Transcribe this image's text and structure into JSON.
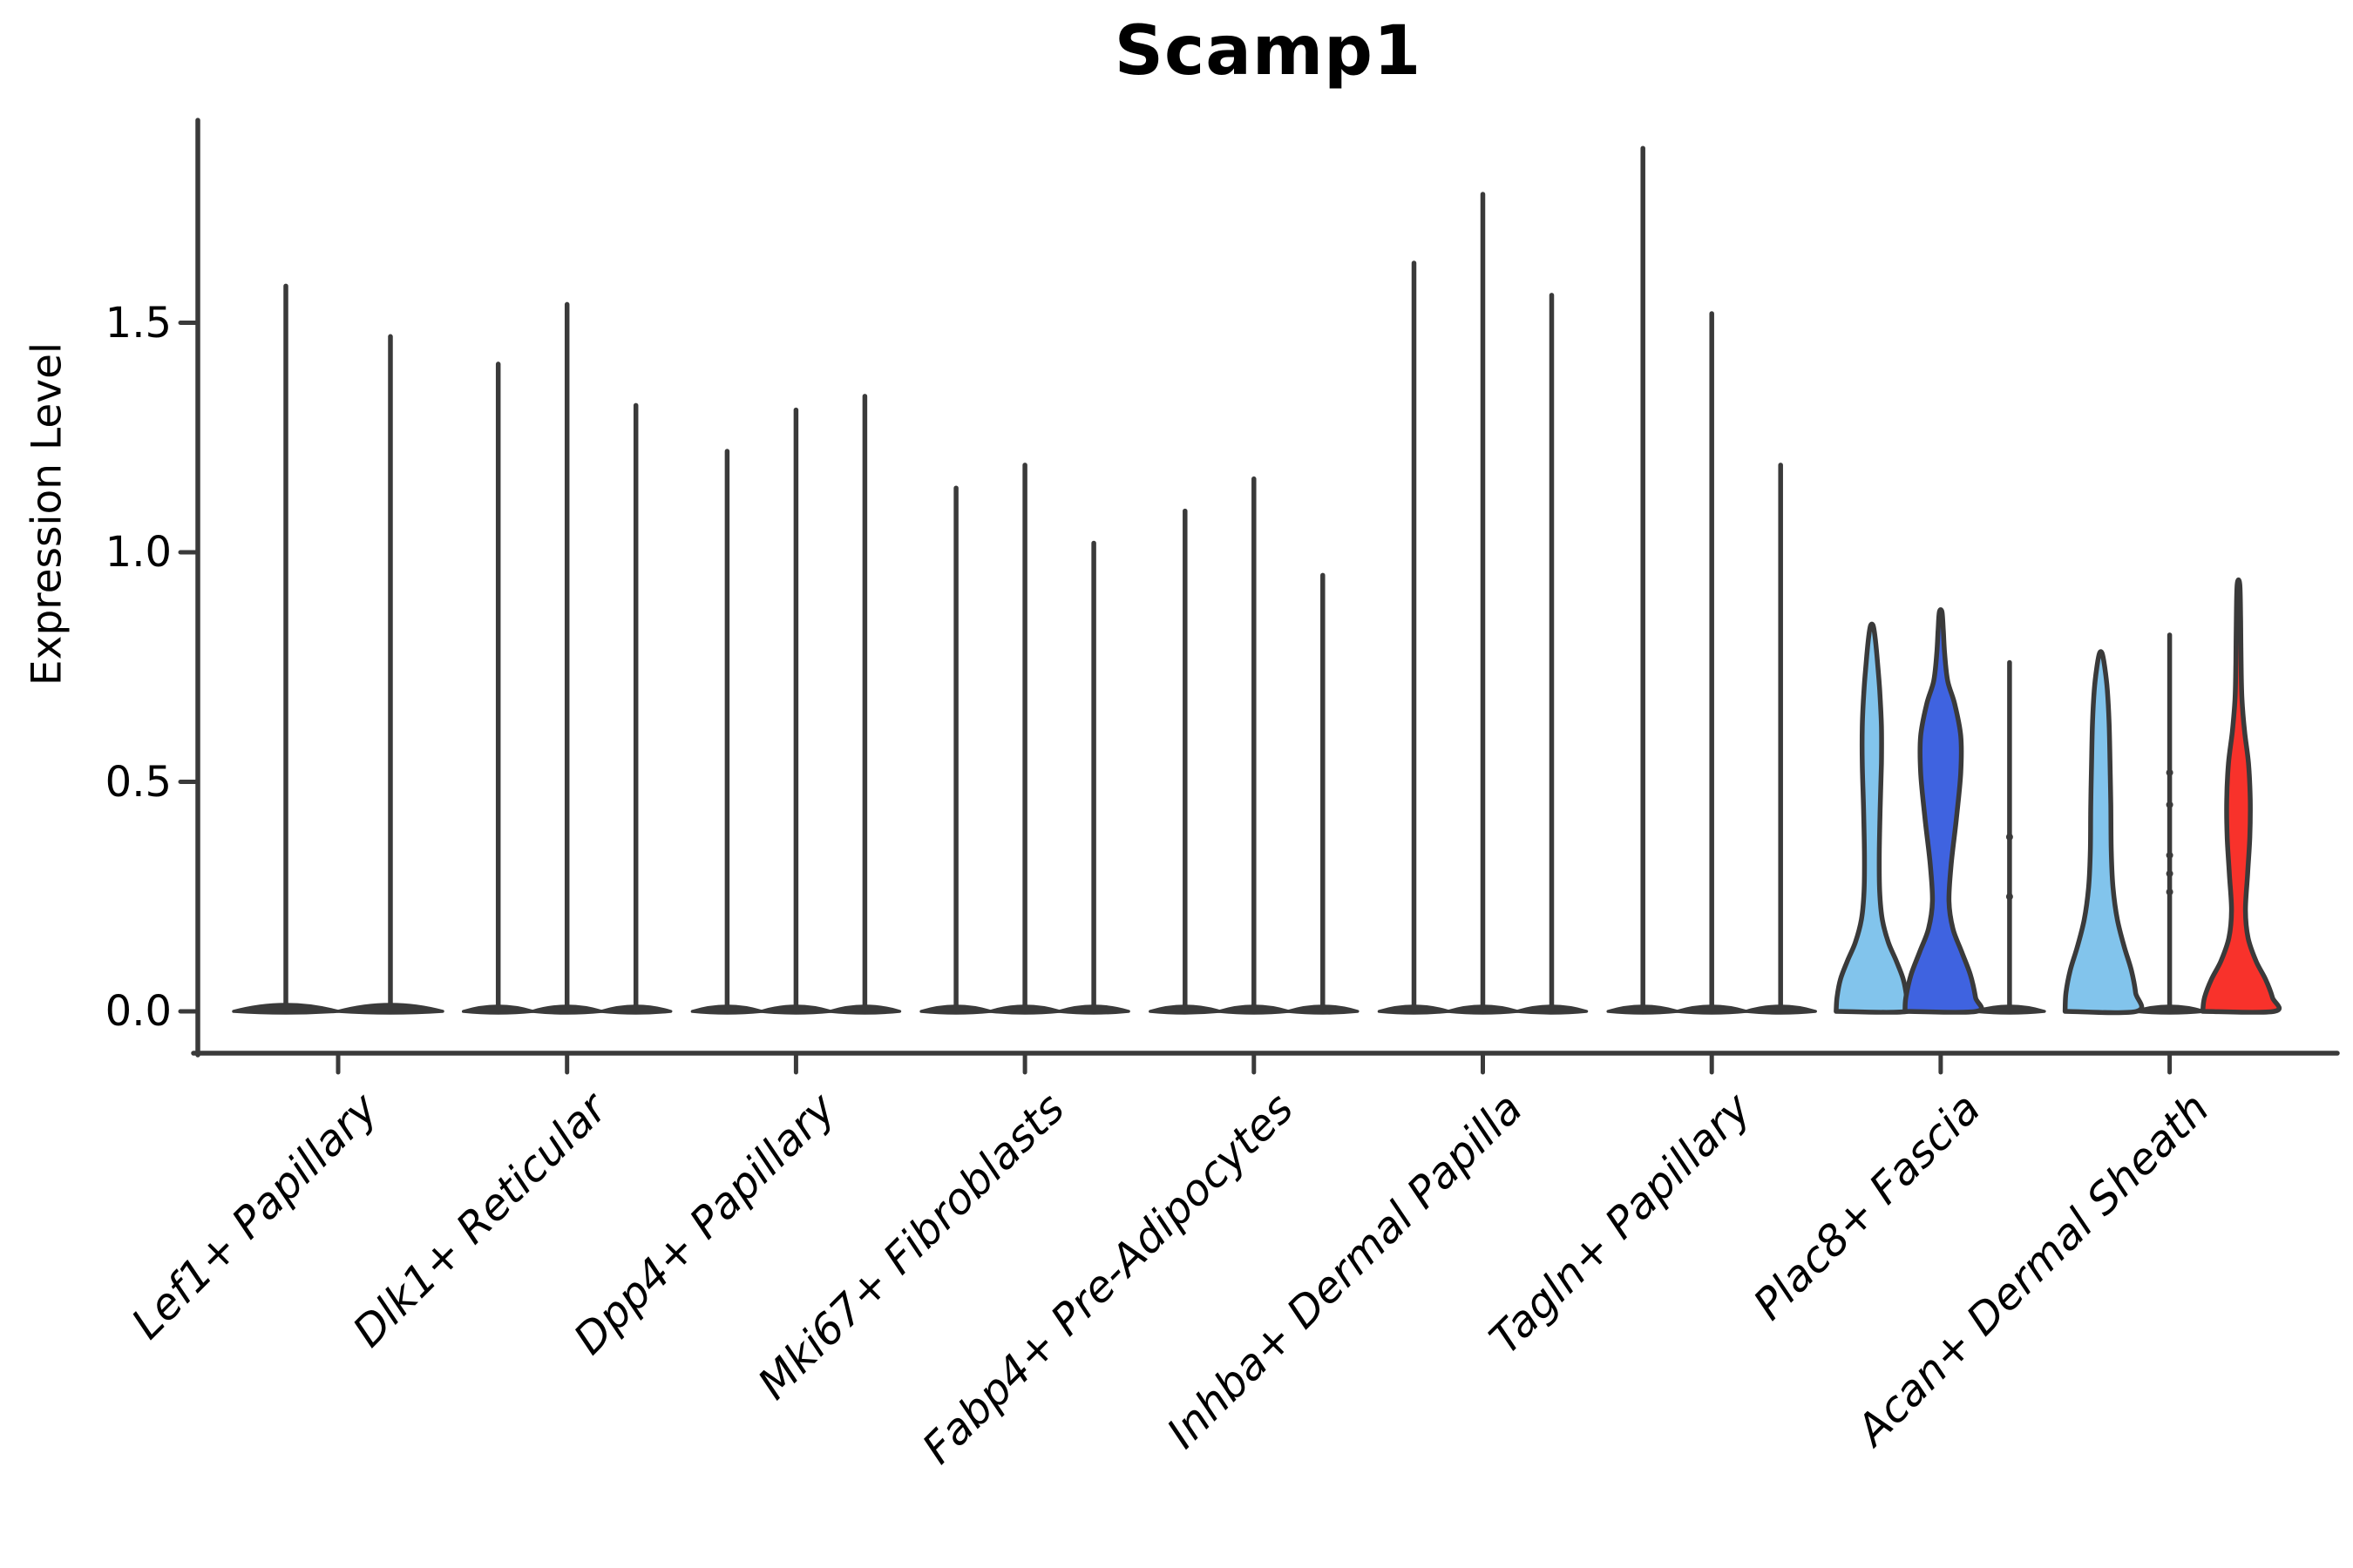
{
  "chart_data": {
    "type": "violin",
    "title": "Scamp1",
    "ylabel": "Expression Level",
    "xlabel": "",
    "legend": "none",
    "grid": false,
    "y_axis": {
      "range": [
        -0.09,
        1.98
      ],
      "ticks": [
        {
          "value": 0.0,
          "label": "0.0"
        },
        {
          "value": 0.5,
          "label": "0.5"
        },
        {
          "value": 1.0,
          "label": "1.0"
        },
        {
          "value": 1.5,
          "label": "1.5"
        }
      ]
    },
    "colors": {
      "light_blue": "#82C4EC",
      "dark_blue": "#3F63E0",
      "red": "#F8322B",
      "line": "#3A3A3A"
    },
    "groups": [
      {
        "label": "Lef1+ Papillary",
        "violins": [
          {
            "style": "line",
            "max": 1.58
          },
          {
            "style": "line",
            "max": 1.47
          }
        ]
      },
      {
        "label": "Dlk1+ Reticular",
        "violins": [
          {
            "style": "line",
            "max": 1.41
          },
          {
            "style": "line",
            "max": 1.54
          },
          {
            "style": "line",
            "max": 1.32
          }
        ]
      },
      {
        "label": "Dpp4+ Papillary",
        "violins": [
          {
            "style": "line",
            "max": 1.22
          },
          {
            "style": "line",
            "max": 1.31
          },
          {
            "style": "line",
            "max": 1.34
          }
        ]
      },
      {
        "label": "Mki67+ Fibroblasts",
        "violins": [
          {
            "style": "line",
            "max": 1.14
          },
          {
            "style": "line",
            "max": 1.19
          },
          {
            "style": "line",
            "max": 1.02
          }
        ]
      },
      {
        "label": "Fabp4+ Pre-Adipocytes",
        "violins": [
          {
            "style": "line",
            "max": 1.09
          },
          {
            "style": "line",
            "max": 1.16
          },
          {
            "style": "line",
            "max": 0.95
          }
        ]
      },
      {
        "label": "Inhba+ Dermal Papilla",
        "violins": [
          {
            "style": "line",
            "max": 1.63
          },
          {
            "style": "line",
            "max": 1.78
          },
          {
            "style": "line",
            "max": 1.56
          }
        ]
      },
      {
        "label": "Tagln+ Papillary",
        "violins": [
          {
            "style": "line",
            "max": 1.88
          },
          {
            "style": "line",
            "max": 1.52
          },
          {
            "style": "line",
            "max": 1.19
          }
        ]
      },
      {
        "label": "Plac8+ Fascia",
        "violins": [
          {
            "style": "filled",
            "color_key": "light_blue",
            "max": 0.84,
            "profile": [
              [
                0,
                41
              ],
              [
                0.03,
                40
              ],
              [
                0.07,
                36
              ],
              [
                0.11,
                28
              ],
              [
                0.15,
                19
              ],
              [
                0.2,
                12
              ],
              [
                0.26,
                9
              ],
              [
                0.34,
                8.5
              ],
              [
                0.44,
                9.5
              ],
              [
                0.54,
                11
              ],
              [
                0.62,
                11
              ],
              [
                0.7,
                9
              ],
              [
                0.76,
                6.5
              ],
              [
                0.81,
                4
              ],
              [
                0.84,
                1.5
              ]
            ]
          },
          {
            "style": "filled",
            "color_key": "dark_blue",
            "max": 0.87,
            "profile": [
              [
                0,
                41
              ],
              [
                0.03,
                40
              ],
              [
                0.08,
                34
              ],
              [
                0.13,
                24
              ],
              [
                0.18,
                14
              ],
              [
                0.24,
                9.5
              ],
              [
                0.32,
                12
              ],
              [
                0.42,
                18
              ],
              [
                0.52,
                23
              ],
              [
                0.6,
                23
              ],
              [
                0.67,
                16
              ],
              [
                0.72,
                8
              ],
              [
                0.78,
                4.5
              ],
              [
                0.83,
                3
              ],
              [
                0.87,
                1.5
              ]
            ]
          },
          {
            "style": "line",
            "max": 0.76,
            "dots": [
              0.38,
              0.25
            ]
          }
        ]
      },
      {
        "label": "Acan+ Dermal Sheath",
        "violins": [
          {
            "style": "filled",
            "color_key": "light_blue",
            "max": 0.78,
            "profile": [
              [
                0,
                41
              ],
              [
                0.04,
                40
              ],
              [
                0.09,
                35
              ],
              [
                0.14,
                27
              ],
              [
                0.2,
                19
              ],
              [
                0.27,
                14
              ],
              [
                0.35,
                12
              ],
              [
                0.45,
                11.5
              ],
              [
                0.55,
                10.5
              ],
              [
                0.63,
                9.5
              ],
              [
                0.7,
                7.5
              ],
              [
                0.75,
                4.5
              ],
              [
                0.78,
                1.5
              ]
            ]
          },
          {
            "style": "line",
            "max": 0.82,
            "dots": [
              0.52,
              0.45,
              0.34,
              0.3,
              0.26
            ]
          },
          {
            "style": "filled",
            "color_key": "red",
            "max": 0.93,
            "profile": [
              [
                0,
                41
              ],
              [
                0.03,
                39
              ],
              [
                0.07,
                31
              ],
              [
                0.11,
                20
              ],
              [
                0.16,
                11
              ],
              [
                0.22,
                8
              ],
              [
                0.3,
                10.5
              ],
              [
                0.38,
                13
              ],
              [
                0.46,
                13.5
              ],
              [
                0.54,
                11.5
              ],
              [
                0.61,
                7
              ],
              [
                0.68,
                4
              ],
              [
                0.76,
                3
              ],
              [
                0.85,
                2.5
              ],
              [
                0.93,
                1.5
              ]
            ]
          }
        ]
      }
    ]
  }
}
